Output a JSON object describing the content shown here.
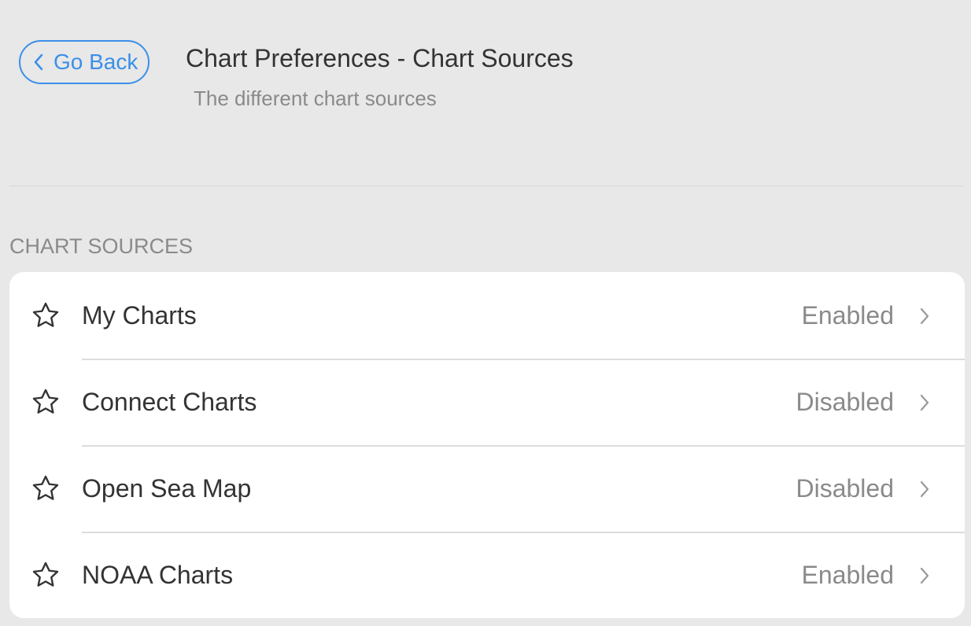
{
  "header": {
    "back_label": "Go Back",
    "title": "Chart Preferences - Chart Sources",
    "subtitle": "The different chart sources"
  },
  "section": {
    "title": "CHART SOURCES"
  },
  "items": [
    {
      "label": "My Charts",
      "status": "Enabled",
      "icon": "star-icon"
    },
    {
      "label": "Connect Charts",
      "status": "Disabled",
      "icon": "star-icon"
    },
    {
      "label": "Open Sea Map",
      "status": "Disabled",
      "icon": "star-icon"
    },
    {
      "label": "NOAA Charts",
      "status": "Enabled",
      "icon": "star-icon"
    }
  ],
  "colors": {
    "accent": "#3b8fe8",
    "background": "#e8e8e8"
  }
}
